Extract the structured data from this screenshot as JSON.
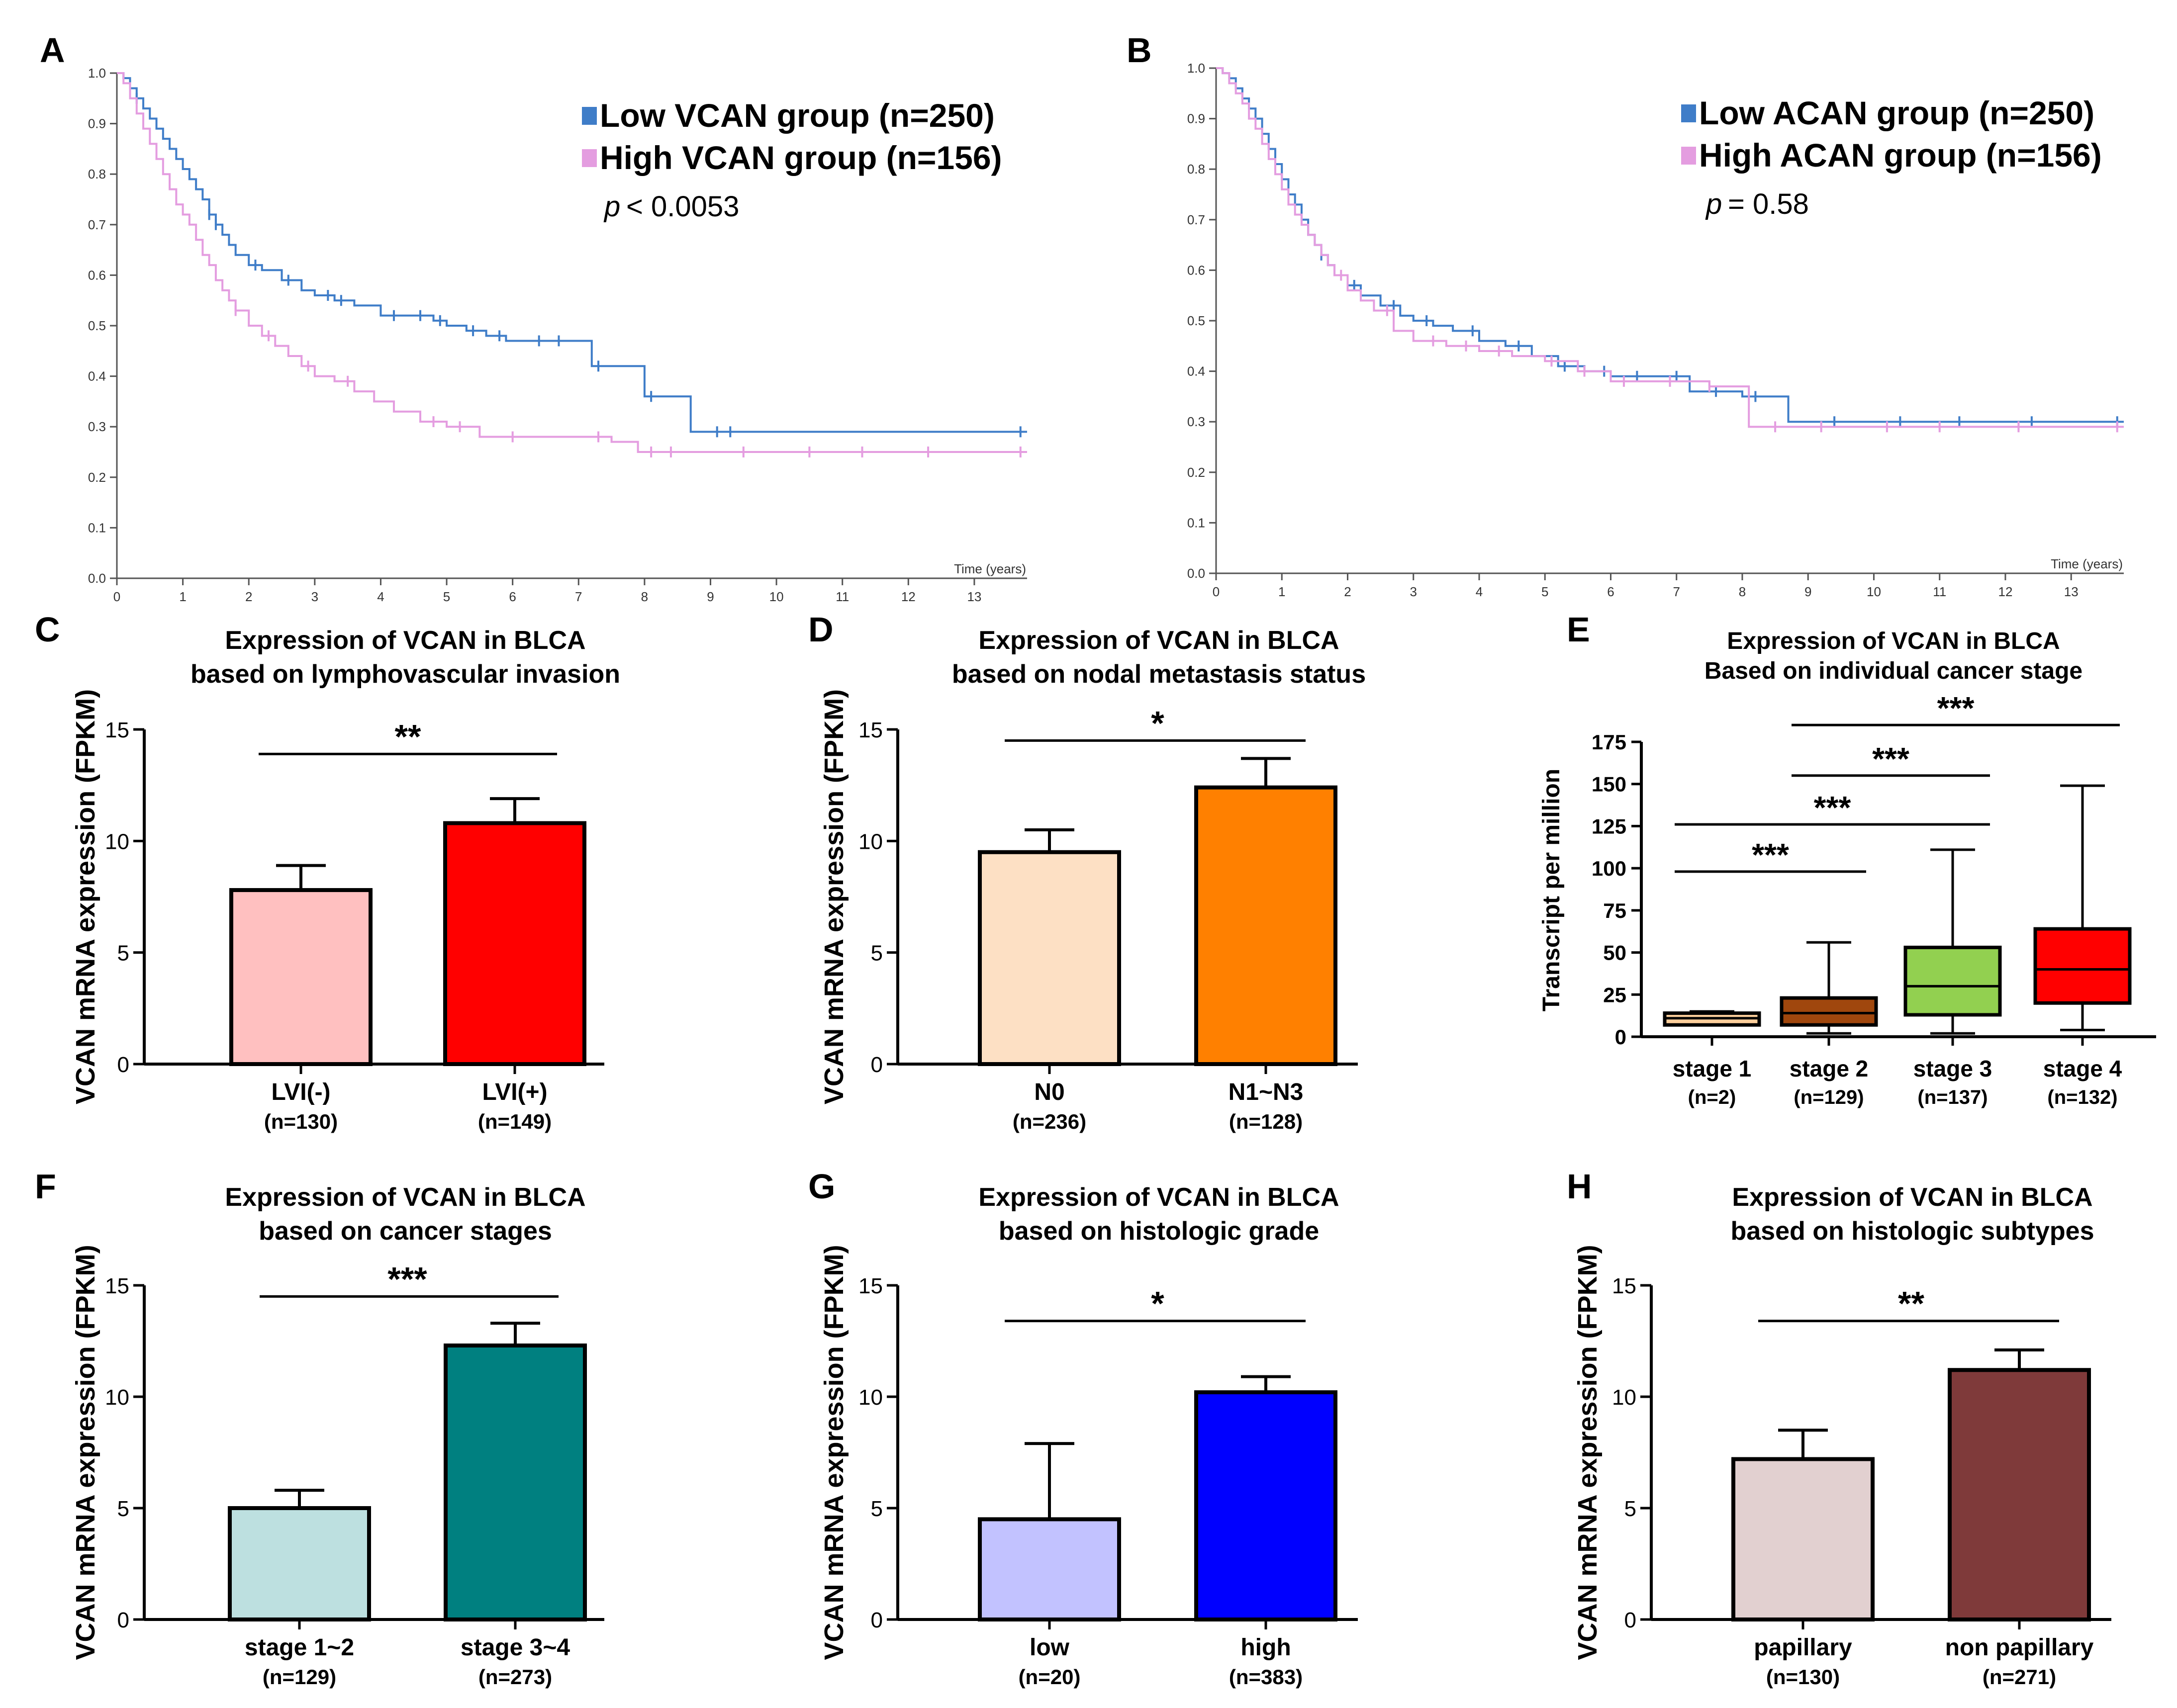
{
  "figure": {
    "panel_letters": [
      "A",
      "B",
      "C",
      "D",
      "E",
      "F",
      "G",
      "H"
    ]
  },
  "chart_data": [
    {
      "panel": "A",
      "type": "line",
      "xlabel": "Time (years)",
      "ylabel": "",
      "xlim": [
        0,
        13.8
      ],
      "ylim": [
        0,
        1
      ],
      "xticks": [
        0,
        1,
        2,
        3,
        4,
        5,
        6,
        7,
        8,
        9,
        10,
        11,
        12,
        13
      ],
      "yticks": [
        "0.0",
        "0.1",
        "0.2",
        "0.3",
        "0.4",
        "0.5",
        "0.6",
        "0.7",
        "0.8",
        "0.9",
        "1.0"
      ],
      "pvalue_prefix": "p",
      "pvalue_text": "< 0.0053",
      "series": [
        {
          "name": "Low VCAN group (n=250)",
          "color": "#3f7dc8",
          "x": [
            0,
            0.1,
            0.2,
            0.3,
            0.4,
            0.5,
            0.6,
            0.7,
            0.8,
            0.9,
            1.0,
            1.1,
            1.2,
            1.3,
            1.4,
            1.5,
            1.6,
            1.7,
            1.8,
            2.0,
            2.2,
            2.5,
            2.8,
            3.0,
            3.3,
            3.6,
            4.0,
            4.4,
            4.8,
            5.0,
            5.3,
            5.6,
            5.9,
            6.2,
            6.6,
            7.0,
            7.2,
            7.2,
            8.0,
            8.0,
            8.7,
            8.7,
            13.8
          ],
          "y": [
            1.0,
            0.99,
            0.97,
            0.95,
            0.93,
            0.91,
            0.89,
            0.87,
            0.85,
            0.83,
            0.81,
            0.79,
            0.77,
            0.75,
            0.72,
            0.7,
            0.68,
            0.66,
            0.64,
            0.62,
            0.61,
            0.59,
            0.57,
            0.56,
            0.55,
            0.54,
            0.52,
            0.52,
            0.51,
            0.5,
            0.49,
            0.48,
            0.47,
            0.47,
            0.47,
            0.47,
            0.47,
            0.42,
            0.42,
            0.36,
            0.36,
            0.29,
            0.29
          ],
          "censors": [
            0.3,
            1.4,
            1.5,
            2.1,
            2.6,
            3.2,
            3.4,
            4.2,
            4.6,
            4.9,
            5.4,
            5.8,
            6.4,
            6.7,
            7.3,
            8.1,
            9.1,
            9.3,
            13.7
          ]
        },
        {
          "name": "High VCAN group (n=156)",
          "color": "#e49de0",
          "x": [
            0,
            0.1,
            0.2,
            0.3,
            0.4,
            0.5,
            0.6,
            0.7,
            0.8,
            0.9,
            1.0,
            1.1,
            1.2,
            1.3,
            1.4,
            1.5,
            1.6,
            1.7,
            1.8,
            2.0,
            2.2,
            2.4,
            2.6,
            2.8,
            3.0,
            3.3,
            3.6,
            3.9,
            4.2,
            4.6,
            5.0,
            5.5,
            6.0,
            7.0,
            7.5,
            7.9,
            7.9,
            13.8
          ],
          "y": [
            1.0,
            0.98,
            0.95,
            0.92,
            0.89,
            0.86,
            0.83,
            0.8,
            0.77,
            0.74,
            0.72,
            0.7,
            0.67,
            0.64,
            0.62,
            0.59,
            0.57,
            0.55,
            0.53,
            0.5,
            0.48,
            0.46,
            0.44,
            0.42,
            0.4,
            0.39,
            0.37,
            0.35,
            0.33,
            0.31,
            0.3,
            0.28,
            0.28,
            0.28,
            0.27,
            0.27,
            0.25,
            0.25
          ],
          "censors": [
            1.8,
            2.3,
            2.9,
            3.5,
            4.8,
            5.2,
            6.0,
            7.3,
            8.1,
            8.4,
            9.5,
            10.5,
            11.3,
            12.3,
            13.7
          ]
        }
      ]
    },
    {
      "panel": "B",
      "type": "line",
      "xlabel": "Time (years)",
      "ylabel": "",
      "xlim": [
        0,
        13.8
      ],
      "ylim": [
        0,
        1
      ],
      "xticks": [
        0,
        1,
        2,
        3,
        4,
        5,
        6,
        7,
        8,
        9,
        10,
        11,
        12,
        13
      ],
      "yticks": [
        "0.0",
        "0.1",
        "0.2",
        "0.3",
        "0.4",
        "0.5",
        "0.6",
        "0.7",
        "0.8",
        "0.9",
        "1.0"
      ],
      "pvalue_prefix": "p",
      "pvalue_text": "= 0.58",
      "series": [
        {
          "name": "Low ACAN group (n=250)",
          "color": "#3f7dc8",
          "x": [
            0,
            0.1,
            0.2,
            0.3,
            0.4,
            0.5,
            0.6,
            0.7,
            0.8,
            0.9,
            1.0,
            1.1,
            1.2,
            1.3,
            1.4,
            1.5,
            1.6,
            1.7,
            1.8,
            2.0,
            2.2,
            2.5,
            2.8,
            3.0,
            3.3,
            3.6,
            4.0,
            4.4,
            4.8,
            5.2,
            5.6,
            6.0,
            6.5,
            7.2,
            7.2,
            8.0,
            8.7,
            8.7,
            13.8
          ],
          "y": [
            1.0,
            0.99,
            0.98,
            0.96,
            0.94,
            0.92,
            0.9,
            0.87,
            0.84,
            0.81,
            0.78,
            0.75,
            0.73,
            0.7,
            0.67,
            0.65,
            0.63,
            0.61,
            0.59,
            0.57,
            0.55,
            0.53,
            0.51,
            0.5,
            0.49,
            0.48,
            0.46,
            0.45,
            0.43,
            0.41,
            0.4,
            0.39,
            0.39,
            0.39,
            0.36,
            0.35,
            0.35,
            0.3,
            0.3
          ],
          "censors": [
            0.2,
            1.6,
            2.1,
            2.7,
            3.2,
            3.9,
            4.6,
            5.3,
            5.9,
            6.4,
            7.0,
            7.6,
            8.2,
            9.4,
            10.4,
            11.3,
            12.4,
            13.7
          ]
        },
        {
          "name": "High ACAN group (n=156)",
          "color": "#e49de0",
          "x": [
            0,
            0.1,
            0.2,
            0.3,
            0.4,
            0.5,
            0.6,
            0.7,
            0.8,
            0.9,
            1.0,
            1.1,
            1.2,
            1.3,
            1.4,
            1.5,
            1.6,
            1.7,
            1.8,
            2.0,
            2.2,
            2.4,
            2.7,
            3.0,
            3.5,
            4.0,
            4.5,
            5.0,
            5.5,
            6.0,
            7.0,
            7.5,
            7.8,
            8.1,
            8.1,
            13.8
          ],
          "y": [
            1.0,
            0.99,
            0.97,
            0.95,
            0.93,
            0.9,
            0.88,
            0.85,
            0.82,
            0.79,
            0.76,
            0.73,
            0.71,
            0.69,
            0.67,
            0.65,
            0.63,
            0.61,
            0.59,
            0.56,
            0.54,
            0.52,
            0.48,
            0.46,
            0.45,
            0.44,
            0.43,
            0.42,
            0.4,
            0.38,
            0.38,
            0.37,
            0.37,
            0.35,
            0.29,
            0.29
          ],
          "censors": [
            1.9,
            2.6,
            3.3,
            3.8,
            4.3,
            5.1,
            5.6,
            6.2,
            6.9,
            7.5,
            8.5,
            9.2,
            10.2,
            11.0,
            12.2,
            13.7
          ]
        }
      ]
    },
    {
      "panel": "C",
      "type": "bar",
      "title": [
        "Expression of VCAN in BLCA",
        "based on lymphovascular invasion"
      ],
      "ylabel": "VCAN mRNA expression (FPKM)",
      "ylim": [
        0,
        15
      ],
      "yticks": [
        0,
        5,
        10,
        15
      ],
      "categories": [
        "LVI(-)",
        "LVI(+)"
      ],
      "n_labels": [
        "(n=130)",
        "(n=149)"
      ],
      "values": [
        7.8,
        10.8
      ],
      "errors": [
        1.1,
        1.1
      ],
      "colors": [
        "#ffc0c0",
        "#ff0000"
      ],
      "significance": [
        {
          "from": 0,
          "to": 1,
          "label": "**",
          "y": 13.9
        }
      ]
    },
    {
      "panel": "D",
      "type": "bar",
      "title": [
        "Expression of VCAN in BLCA",
        "based on nodal metastasis status"
      ],
      "ylabel": "VCAN mRNA expression (FPKM)",
      "ylim": [
        0,
        15
      ],
      "yticks": [
        0,
        5,
        10,
        15
      ],
      "categories": [
        "N0",
        "N1~N3"
      ],
      "n_labels": [
        "(n=236)",
        "(n=128)"
      ],
      "values": [
        9.5,
        12.4
      ],
      "errors": [
        1.0,
        1.3
      ],
      "colors": [
        "#fde0c4",
        "#ff8000"
      ],
      "significance": [
        {
          "from": 0,
          "to": 1,
          "label": "*",
          "y": 14.5
        }
      ]
    },
    {
      "panel": "E",
      "type": "box",
      "title": [
        "Expression of VCAN in BLCA",
        "Based on individual cancer stage"
      ],
      "ylabel": "Transcript per million",
      "ylim": [
        0,
        175
      ],
      "yticks": [
        0,
        25,
        50,
        75,
        100,
        125,
        150,
        175
      ],
      "categories": [
        "stage 1",
        "stage 2",
        "stage 3",
        "stage 4"
      ],
      "n_labels": [
        "(n=2)",
        "(n=129)",
        "(n=137)",
        "(n=132)"
      ],
      "boxes": [
        {
          "min": 7,
          "q1": 7,
          "median": 11,
          "q3": 14,
          "max": 15
        },
        {
          "min": 2,
          "q1": 7,
          "median": 14,
          "q3": 23,
          "max": 56
        },
        {
          "min": 2,
          "q1": 13,
          "median": 30,
          "q3": 53,
          "max": 111
        },
        {
          "min": 4,
          "q1": 20,
          "median": 40,
          "q3": 64,
          "max": 149
        }
      ],
      "colors": [
        "#fdcf9c",
        "#a0470d",
        "#92d050",
        "#ff0000"
      ],
      "significance": [
        {
          "from": 0,
          "to": 1,
          "label": "***",
          "y": 98
        },
        {
          "from": 0,
          "to": 2,
          "label": "***",
          "y": 126
        },
        {
          "from": 1,
          "to": 2,
          "label": "***",
          "y": 155
        },
        {
          "from": 1,
          "to": 3,
          "label": "***",
          "y": 185
        }
      ]
    },
    {
      "panel": "F",
      "type": "bar",
      "title": [
        "Expression of VCAN in BLCA",
        "based on cancer stages"
      ],
      "ylabel": "VCAN mRNA expression (FPKM)",
      "ylim": [
        0,
        15
      ],
      "yticks": [
        0,
        5,
        10,
        15
      ],
      "categories": [
        "stage 1~2",
        "stage 3~4"
      ],
      "n_labels": [
        "(n=129)",
        "(n=273)"
      ],
      "values": [
        5.0,
        12.3
      ],
      "errors": [
        0.8,
        1.0
      ],
      "colors": [
        "#bde0e0",
        "#008080"
      ],
      "significance": [
        {
          "from": 0,
          "to": 1,
          "label": "***",
          "y": 14.5
        }
      ]
    },
    {
      "panel": "G",
      "type": "bar",
      "title": [
        "Expression of VCAN in BLCA",
        "based on  histologic grade"
      ],
      "ylabel": "VCAN mRNA expression (FPKM)",
      "ylim": [
        0,
        15
      ],
      "yticks": [
        0,
        5,
        10,
        15
      ],
      "categories": [
        "low",
        "high"
      ],
      "n_labels": [
        "(n=20)",
        "(n=383)"
      ],
      "values": [
        4.5,
        10.2
      ],
      "errors": [
        3.4,
        0.7
      ],
      "colors": [
        "#c2c2ff",
        "#0000ff"
      ],
      "significance": [
        {
          "from": 0,
          "to": 1,
          "label": "*",
          "y": 13.4
        }
      ]
    },
    {
      "panel": "H",
      "type": "bar",
      "title": [
        "Expression of VCAN in BLCA",
        "based on  histologic subtypes"
      ],
      "ylabel": "VCAN mRNA expression (FPKM)",
      "ylim": [
        0,
        15
      ],
      "yticks": [
        0,
        5,
        10,
        15
      ],
      "categories": [
        "papillary",
        "non papillary"
      ],
      "n_labels": [
        "(n=130)",
        "(n=271)"
      ],
      "values": [
        7.2,
        11.2
      ],
      "errors": [
        1.3,
        0.9
      ],
      "colors": [
        "#e2d0d0",
        "#7f3a3a"
      ],
      "significance": [
        {
          "from": 0,
          "to": 1,
          "label": "**",
          "y": 13.4
        }
      ]
    }
  ]
}
